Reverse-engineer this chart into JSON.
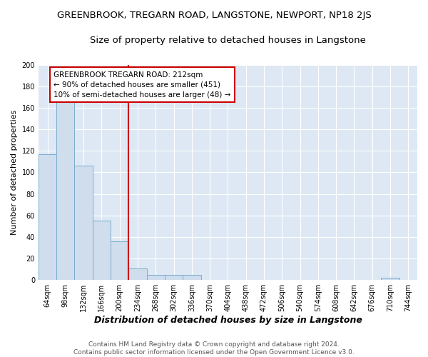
{
  "title": "GREENBROOK, TREGARN ROAD, LANGSTONE, NEWPORT, NP18 2JS",
  "subtitle": "Size of property relative to detached houses in Langstone",
  "xlabel": "Distribution of detached houses by size in Langstone",
  "ylabel": "Number of detached properties",
  "categories": [
    "64sqm",
    "98sqm",
    "132sqm",
    "166sqm",
    "200sqm",
    "234sqm",
    "268sqm",
    "302sqm",
    "336sqm",
    "370sqm",
    "404sqm",
    "438sqm",
    "472sqm",
    "506sqm",
    "540sqm",
    "574sqm",
    "608sqm",
    "642sqm",
    "676sqm",
    "710sqm",
    "744sqm"
  ],
  "values": [
    117,
    165,
    106,
    55,
    36,
    11,
    5,
    5,
    5,
    0,
    0,
    0,
    0,
    0,
    0,
    0,
    0,
    0,
    0,
    2,
    0
  ],
  "bar_color": "#cfdded",
  "bar_edge_color": "#7aadd0",
  "annotation_text": "GREENBROOK TREGARN ROAD: 212sqm\n← 90% of detached houses are smaller (451)\n10% of semi-detached houses are larger (48) →",
  "annotation_box_color": "#ffffff",
  "annotation_box_edge": "#cc0000",
  "background_color": "#dde8f4",
  "grid_color": "#ffffff",
  "ylim": [
    0,
    200
  ],
  "yticks": [
    0,
    20,
    40,
    60,
    80,
    100,
    120,
    140,
    160,
    180,
    200
  ],
  "footnote": "Contains HM Land Registry data © Crown copyright and database right 2024.\nContains public sector information licensed under the Open Government Licence v3.0.",
  "title_fontsize": 9.5,
  "subtitle_fontsize": 9.5,
  "xlabel_fontsize": 9,
  "ylabel_fontsize": 8,
  "tick_fontsize": 7,
  "annot_fontsize": 7.5,
  "footnote_fontsize": 6.5
}
